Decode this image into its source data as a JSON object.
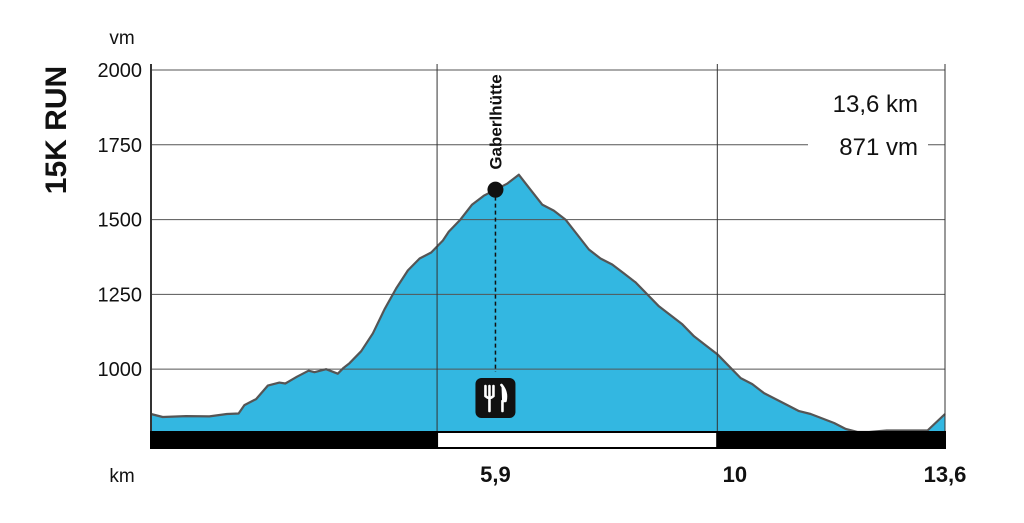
{
  "chart_data": {
    "type": "area",
    "title": "15K RUN",
    "ylabel": "vm",
    "xlabel": "km",
    "xlim": [
      0,
      13.6
    ],
    "ylim": [
      790,
      2000
    ],
    "yticks": [
      1000,
      1250,
      1500,
      1750,
      2000
    ],
    "xtick_labels": [
      "5,9",
      "10",
      "13,6"
    ],
    "xticks": [
      5.9,
      10,
      13.6
    ],
    "vertical_gridlines_km": [
      4.9,
      9.7,
      13.6
    ],
    "grid": true,
    "fill_color": "#33b7e1",
    "line_color": "#555555",
    "summary": {
      "distance": "13,6 km",
      "elevation_gain": "871 vm"
    },
    "poi": {
      "label": "Gaberlhütte",
      "x": 5.9,
      "y": 1600,
      "icon": "restaurant-icon"
    },
    "segments": [
      {
        "from": 0,
        "to": 4.9,
        "color": "#000000"
      },
      {
        "from": 4.9,
        "to": 9.7,
        "color": "#ffffff"
      },
      {
        "from": 9.7,
        "to": 13.6,
        "color": "#000000"
      }
    ],
    "profile": {
      "x": [
        0,
        0.2,
        0.6,
        1.0,
        1.3,
        1.5,
        1.6,
        1.8,
        2.0,
        2.2,
        2.3,
        2.5,
        2.7,
        2.8,
        3.0,
        3.2,
        3.3,
        3.4,
        3.6,
        3.8,
        4.0,
        4.2,
        4.4,
        4.6,
        4.8,
        5.0,
        5.1,
        5.3,
        5.5,
        5.7,
        5.9,
        6.1,
        6.3,
        6.5,
        6.7,
        6.9,
        7.1,
        7.3,
        7.5,
        7.7,
        7.9,
        8.1,
        8.3,
        8.5,
        8.7,
        8.9,
        9.1,
        9.3,
        9.5,
        9.7,
        9.9,
        10.1,
        10.3,
        10.5,
        10.7,
        10.9,
        11.1,
        11.3,
        11.5,
        11.7,
        11.9,
        12.1,
        12.3,
        12.6,
        13.0,
        13.3,
        13.6
      ],
      "y": [
        850,
        840,
        843,
        842,
        850,
        852,
        880,
        900,
        945,
        955,
        952,
        975,
        995,
        990,
        1000,
        985,
        1005,
        1020,
        1060,
        1120,
        1200,
        1270,
        1330,
        1370,
        1390,
        1430,
        1460,
        1500,
        1550,
        1580,
        1600,
        1620,
        1650,
        1600,
        1550,
        1530,
        1500,
        1450,
        1400,
        1370,
        1350,
        1320,
        1290,
        1250,
        1210,
        1180,
        1150,
        1110,
        1080,
        1050,
        1010,
        970,
        950,
        920,
        900,
        880,
        860,
        850,
        835,
        820,
        800,
        790,
        790,
        795,
        795,
        795,
        850
      ]
    }
  }
}
